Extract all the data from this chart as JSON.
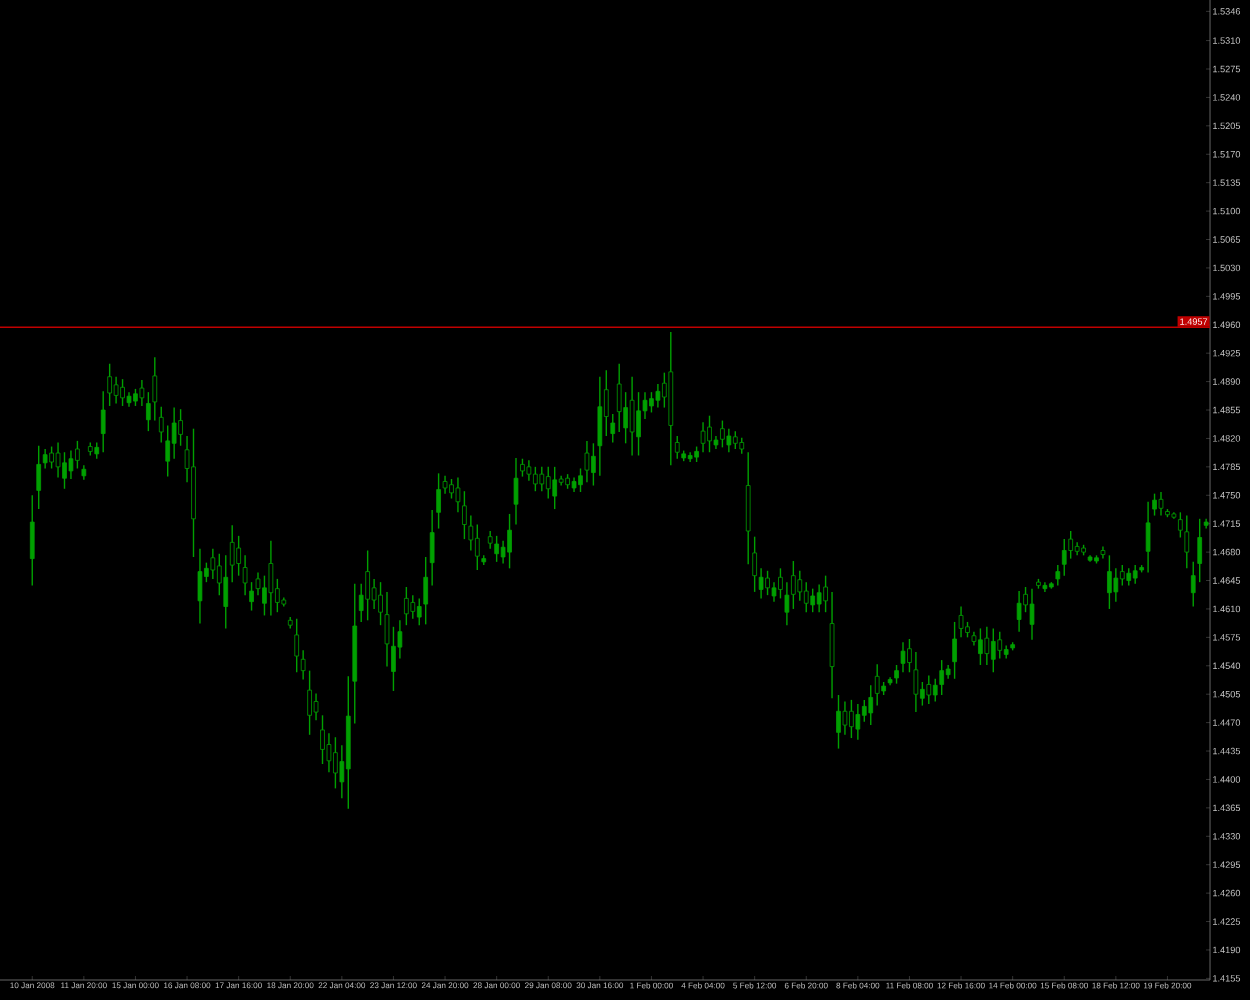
{
  "chart_data": {
    "type": "candlestick",
    "categories": [
      "10 Jan 2008",
      null,
      null,
      null,
      null,
      null,
      null,
      null,
      "11 Jan 20:00",
      null,
      null,
      null,
      null,
      null,
      null,
      null,
      "15 Jan 00:00",
      null,
      null,
      null,
      null,
      null,
      null,
      null,
      "16 Jan 08:00",
      null,
      null,
      null,
      null,
      null,
      null,
      null,
      "17 Jan 16:00",
      null,
      null,
      null,
      null,
      null,
      null,
      null,
      "18 Jan 20:00",
      null,
      null,
      null,
      null,
      null,
      null,
      null,
      "22 Jan 04:00",
      null,
      null,
      null,
      null,
      null,
      null,
      null,
      "23 Jan 12:00",
      null,
      null,
      null,
      null,
      null,
      null,
      null,
      "24 Jan 20:00",
      null,
      null,
      null,
      null,
      null,
      null,
      null,
      "28 Jan 00:00",
      null,
      null,
      null,
      null,
      null,
      null,
      null,
      "29 Jan 08:00",
      null,
      null,
      null,
      null,
      null,
      null,
      null,
      "30 Jan 16:00",
      null,
      null,
      null,
      null,
      null,
      null,
      null,
      "1 Feb 00:00",
      null,
      null,
      null,
      null,
      null,
      null,
      null,
      "4 Feb 04:00",
      null,
      null,
      null,
      null,
      null,
      null,
      null,
      "5 Feb 12:00",
      null,
      null,
      null,
      null,
      null,
      null,
      null,
      "6 Feb 20:00",
      null,
      null,
      null,
      null,
      null,
      null,
      null,
      "8 Feb 04:00",
      null,
      null,
      null,
      null,
      null,
      null,
      null,
      "11 Feb 08:00",
      null,
      null,
      null,
      null,
      null,
      null,
      null,
      "12 Feb 16:00",
      null,
      null,
      null,
      null,
      null,
      null,
      null,
      "14 Feb 00:00",
      null,
      null,
      null,
      null,
      null,
      null,
      null,
      "15 Feb 08:00",
      null,
      null,
      null,
      null,
      null,
      null,
      null,
      "18 Feb 12:00",
      null,
      null,
      null,
      null,
      null,
      null,
      null,
      "19 Feb 20:00",
      null,
      null,
      null,
      null,
      null,
      null
    ],
    "ohlc": [
      [
        1.4672,
        1.475,
        1.4639,
        1.4717
      ],
      [
        1.4756,
        1.4811,
        1.4733,
        1.4788
      ],
      [
        1.479,
        1.4807,
        1.4783,
        1.48
      ],
      [
        1.4802,
        1.481,
        1.4783,
        1.4791
      ],
      [
        1.4802,
        1.4815,
        1.4772,
        1.4785
      ],
      [
        1.4771,
        1.4803,
        1.4758,
        1.479
      ],
      [
        1.478,
        1.4805,
        1.477,
        1.4795
      ],
      [
        1.4807,
        1.4817,
        1.4783,
        1.4793
      ],
      [
        1.4774,
        1.4787,
        1.4769,
        1.4782
      ],
      [
        1.481,
        1.4815,
        1.4799,
        1.4804
      ],
      [
        1.4801,
        1.4815,
        1.4795,
        1.4809
      ],
      [
        1.4826,
        1.4878,
        1.4803,
        1.4855
      ],
      [
        1.4896,
        1.4912,
        1.486,
        1.4876
      ],
      [
        1.4886,
        1.4896,
        1.4863,
        1.4873
      ],
      [
        1.4883,
        1.4893,
        1.486,
        1.487
      ],
      [
        1.4864,
        1.4877,
        1.4859,
        1.4872
      ],
      [
        1.4866,
        1.4881,
        1.486,
        1.4875
      ],
      [
        1.4882,
        1.4892,
        1.486,
        1.487
      ],
      [
        1.4843,
        1.4877,
        1.4829,
        1.4863
      ],
      [
        1.4897,
        1.492,
        1.4842,
        1.4865
      ],
      [
        1.4846,
        1.4859,
        1.4815,
        1.4828
      ],
      [
        1.4792,
        1.4836,
        1.4773,
        1.4817
      ],
      [
        1.4814,
        1.4858,
        1.4795,
        1.4839
      ],
      [
        1.4842,
        1.4856,
        1.4811,
        1.4825
      ],
      [
        1.4806,
        1.4823,
        1.4766,
        1.4783
      ],
      [
        1.4785,
        1.4832,
        1.4674,
        1.4721
      ],
      [
        1.462,
        1.4684,
        1.4592,
        1.4656
      ],
      [
        1.465,
        1.4667,
        1.4643,
        1.466
      ],
      [
        1.4673,
        1.4684,
        1.4647,
        1.4658
      ],
      [
        1.4663,
        1.4678,
        1.4627,
        1.4642
      ],
      [
        1.4613,
        1.4676,
        1.4586,
        1.4649
      ],
      [
        1.4692,
        1.4713,
        1.4643,
        1.4664
      ],
      [
        1.4685,
        1.47,
        1.4651,
        1.4666
      ],
      [
        1.4661,
        1.4676,
        1.4627,
        1.4642
      ],
      [
        1.4619,
        1.4643,
        1.4608,
        1.4632
      ],
      [
        1.4647,
        1.4655,
        1.4627,
        1.4635
      ],
      [
        1.4617,
        1.4651,
        1.4602,
        1.4636
      ],
      [
        1.4666,
        1.4694,
        1.4602,
        1.463
      ],
      [
        1.4635,
        1.4647,
        1.4606,
        1.4618
      ],
      [
        1.4621,
        1.4624,
        1.4613,
        1.4616
      ],
      [
        1.4596,
        1.46,
        1.4586,
        1.459
      ],
      [
        1.4578,
        1.4598,
        1.4532,
        1.4552
      ],
      [
        1.4548,
        1.4559,
        1.4523,
        1.4534
      ],
      [
        1.451,
        1.4534,
        1.4455,
        1.4479
      ],
      [
        1.4496,
        1.4506,
        1.4473,
        1.4483
      ],
      [
        1.4461,
        1.4479,
        1.4419,
        1.4437
      ],
      [
        1.4443,
        1.4457,
        1.4409,
        1.4423
      ],
      [
        1.4433,
        1.4452,
        1.4389,
        1.4408
      ],
      [
        1.4397,
        1.4442,
        1.4377,
        1.4422
      ],
      [
        1.4413,
        1.4527,
        1.4364,
        1.4478
      ],
      [
        1.4521,
        1.4641,
        1.4469,
        1.4589
      ],
      [
        1.4608,
        1.4641,
        1.4594,
        1.4627
      ],
      [
        1.4656,
        1.4682,
        1.4596,
        1.4622
      ],
      [
        1.4636,
        1.4647,
        1.461,
        1.4621
      ],
      [
        1.4627,
        1.4643,
        1.459,
        1.4606
      ],
      [
        1.4603,
        1.4631,
        1.4539,
        1.4567
      ],
      [
        1.4533,
        1.4588,
        1.4509,
        1.4564
      ],
      [
        1.4563,
        1.4596,
        1.4549,
        1.4582
      ],
      [
        1.4623,
        1.4637,
        1.459,
        1.4604
      ],
      [
        1.4618,
        1.4627,
        1.4598,
        1.4607
      ],
      [
        1.46,
        1.4623,
        1.459,
        1.4613
      ],
      [
        1.4616,
        1.4674,
        1.4591,
        1.4649
      ],
      [
        1.4667,
        1.4732,
        1.4639,
        1.4704
      ],
      [
        1.4729,
        1.4777,
        1.4709,
        1.4757
      ],
      [
        1.4767,
        1.4774,
        1.4752,
        1.4759
      ],
      [
        1.4763,
        1.477,
        1.4746,
        1.4753
      ],
      [
        1.4759,
        1.4772,
        1.4729,
        1.4742
      ],
      [
        1.4737,
        1.4755,
        1.4696,
        1.4714
      ],
      [
        1.4712,
        1.4725,
        1.4682,
        1.4695
      ],
      [
        1.4697,
        1.4714,
        1.4658,
        1.4675
      ],
      [
        1.4668,
        1.4676,
        1.4664,
        1.4672
      ],
      [
        1.4699,
        1.4706,
        1.4684,
        1.4691
      ],
      [
        1.4678,
        1.47,
        1.4668,
        1.469
      ],
      [
        1.4674,
        1.4694,
        1.4666,
        1.4686
      ],
      [
        1.468,
        1.4727,
        1.466,
        1.4707
      ],
      [
        1.4739,
        1.4796,
        1.4714,
        1.4771
      ],
      [
        1.4788,
        1.4795,
        1.4773,
        1.478
      ],
      [
        1.4785,
        1.4793,
        1.4768,
        1.4776
      ],
      [
        1.4776,
        1.4785,
        1.4755,
        1.4764
      ],
      [
        1.4776,
        1.4785,
        1.4755,
        1.4764
      ],
      [
        1.4773,
        1.4785,
        1.4746,
        1.4758
      ],
      [
        1.4749,
        1.4785,
        1.4733,
        1.4769
      ],
      [
        1.477,
        1.4774,
        1.4762,
        1.4766
      ],
      [
        1.4771,
        1.4776,
        1.4758,
        1.4763
      ],
      [
        1.4759,
        1.4772,
        1.4754,
        1.4767
      ],
      [
        1.4763,
        1.4783,
        1.4754,
        1.4774
      ],
      [
        1.4802,
        1.4817,
        1.4766,
        1.4781
      ],
      [
        1.4778,
        1.4814,
        1.4762,
        1.4798
      ],
      [
        1.4811,
        1.4896,
        1.4774,
        1.4859
      ],
      [
        1.488,
        1.4904,
        1.4823,
        1.4847
      ],
      [
        1.4826,
        1.485,
        1.4815,
        1.4839
      ],
      [
        1.4887,
        1.4912,
        1.4828,
        1.4853
      ],
      [
        1.4833,
        1.4877,
        1.4814,
        1.4858
      ],
      [
        1.4867,
        1.4896,
        1.4799,
        1.4828
      ],
      [
        1.4822,
        1.4877,
        1.4799,
        1.4854
      ],
      [
        1.4854,
        1.4877,
        1.4844,
        1.4867
      ],
      [
        1.486,
        1.4877,
        1.4852,
        1.4869
      ],
      [
        1.4867,
        1.4887,
        1.4858,
        1.4878
      ],
      [
        1.4888,
        1.4901,
        1.4858,
        1.4871
      ],
      [
        1.4902,
        1.4951,
        1.4787,
        1.4836
      ],
      [
        1.4815,
        1.4823,
        1.4795,
        1.4803
      ],
      [
        1.4796,
        1.4805,
        1.4792,
        1.4801
      ],
      [
        1.4795,
        1.4803,
        1.4791,
        1.4799
      ],
      [
        1.4797,
        1.481,
        1.4791,
        1.4804
      ],
      [
        1.4829,
        1.484,
        1.4803,
        1.4814
      ],
      [
        1.4834,
        1.4848,
        1.4803,
        1.4817
      ],
      [
        1.4812,
        1.4823,
        1.4807,
        1.4818
      ],
      [
        1.4832,
        1.4842,
        1.4809,
        1.4819
      ],
      [
        1.4812,
        1.4832,
        1.4803,
        1.4823
      ],
      [
        1.4822,
        1.4829,
        1.4807,
        1.4814
      ],
      [
        1.4815,
        1.4821,
        1.4801,
        1.4807
      ],
      [
        1.4762,
        1.4803,
        1.4665,
        1.4706
      ],
      [
        1.4679,
        1.4699,
        1.4631,
        1.4651
      ],
      [
        1.4634,
        1.466,
        1.4623,
        1.4649
      ],
      [
        1.4648,
        1.4657,
        1.4627,
        1.4636
      ],
      [
        1.4626,
        1.4643,
        1.4619,
        1.4636
      ],
      [
        1.4649,
        1.466,
        1.4623,
        1.4634
      ],
      [
        1.4606,
        1.4643,
        1.459,
        1.4627
      ],
      [
        1.4651,
        1.4669,
        1.461,
        1.4628
      ],
      [
        1.4646,
        1.4657,
        1.462,
        1.4631
      ],
      [
        1.4632,
        1.4643,
        1.4606,
        1.4617
      ],
      [
        1.4615,
        1.4635,
        1.4606,
        1.4626
      ],
      [
        1.4616,
        1.464,
        1.4606,
        1.463
      ],
      [
        1.4637,
        1.4651,
        1.4606,
        1.462
      ],
      [
        1.4592,
        1.4631,
        1.45,
        1.4539
      ],
      [
        1.4458,
        1.4504,
        1.4438,
        1.4484
      ],
      [
        1.4484,
        1.4496,
        1.4455,
        1.4467
      ],
      [
        1.4484,
        1.4498,
        1.4451,
        1.4465
      ],
      [
        1.4462,
        1.4493,
        1.4449,
        1.448
      ],
      [
        1.4479,
        1.4498,
        1.4471,
        1.449
      ],
      [
        1.4482,
        1.4516,
        1.4467,
        1.4501
      ],
      [
        1.4527,
        1.4542,
        1.4491,
        1.4506
      ],
      [
        1.4509,
        1.452,
        1.4504,
        1.4515
      ],
      [
        1.4519,
        1.4526,
        1.4516,
        1.4523
      ],
      [
        1.4525,
        1.4541,
        1.4518,
        1.4534
      ],
      [
        1.4543,
        1.4569,
        1.4532,
        1.4558
      ],
      [
        1.4561,
        1.4573,
        1.4532,
        1.4544
      ],
      [
        1.4535,
        1.4557,
        1.4483,
        1.4505
      ],
      [
        1.45,
        1.452,
        1.4491,
        1.4511
      ],
      [
        1.4517,
        1.4528,
        1.4493,
        1.4504
      ],
      [
        1.4504,
        1.4524,
        1.4496,
        1.4516
      ],
      [
        1.4517,
        1.4547,
        1.4504,
        1.4534
      ],
      [
        1.4529,
        1.4541,
        1.4524,
        1.4536
      ],
      [
        1.4545,
        1.4594,
        1.4524,
        1.4573
      ],
      [
        1.4602,
        1.4613,
        1.4575,
        1.4586
      ],
      [
        1.4588,
        1.4594,
        1.4575,
        1.4581
      ],
      [
        1.4577,
        1.4582,
        1.4565,
        1.457
      ],
      [
        1.4555,
        1.4586,
        1.4541,
        1.4572
      ],
      [
        1.4574,
        1.4588,
        1.4541,
        1.4555
      ],
      [
        1.4548,
        1.4586,
        1.4532,
        1.457
      ],
      [
        1.4572,
        1.4582,
        1.4549,
        1.4559
      ],
      [
        1.4554,
        1.4565,
        1.4549,
        1.456
      ],
      [
        1.4562,
        1.4569,
        1.4559,
        1.4566
      ],
      [
        1.4597,
        1.4632,
        1.4582,
        1.4617
      ],
      [
        1.4628,
        1.4637,
        1.4606,
        1.4615
      ],
      [
        1.4591,
        1.4635,
        1.4572,
        1.4616
      ],
      [
        1.4643,
        1.4647,
        1.4635,
        1.4639
      ],
      [
        1.4635,
        1.4643,
        1.4631,
        1.4639
      ],
      [
        1.4637,
        1.4643,
        1.4635,
        1.4641
      ],
      [
        1.4647,
        1.4664,
        1.4639,
        1.4656
      ],
      [
        1.4665,
        1.4696,
        1.4651,
        1.4682
      ],
      [
        1.4696,
        1.4706,
        1.4672,
        1.4682
      ],
      [
        1.4687,
        1.4692,
        1.4676,
        1.4681
      ],
      [
        1.4685,
        1.4689,
        1.4676,
        1.468
      ],
      [
        1.467,
        1.4676,
        1.4668,
        1.4674
      ],
      [
        1.4669,
        1.4676,
        1.4666,
        1.4673
      ],
      [
        1.4682,
        1.4687,
        1.4672,
        1.4677
      ],
      [
        1.463,
        1.4676,
        1.461,
        1.4656
      ],
      [
        1.4631,
        1.466,
        1.4619,
        1.4648
      ],
      [
        1.4656,
        1.4664,
        1.4639,
        1.4647
      ],
      [
        1.4645,
        1.466,
        1.4639,
        1.4654
      ],
      [
        1.4648,
        1.4664,
        1.4641,
        1.4657
      ],
      [
        1.4658,
        1.4664,
        1.4655,
        1.4661
      ],
      [
        1.4681,
        1.4742,
        1.4655,
        1.4716
      ],
      [
        1.4733,
        1.4752,
        1.4725,
        1.4744
      ],
      [
        1.4745,
        1.4754,
        1.4725,
        1.4734
      ],
      [
        1.473,
        1.4733,
        1.4723,
        1.4726
      ],
      [
        1.4727,
        1.4729,
        1.4721,
        1.4723
      ],
      [
        1.472,
        1.4729,
        1.4698,
        1.4707
      ],
      [
        1.4705,
        1.4725,
        1.466,
        1.468
      ],
      [
        1.463,
        1.4668,
        1.4613,
        1.4651
      ],
      [
        1.4666,
        1.4721,
        1.4643,
        1.4698
      ],
      [
        1.4713,
        1.4721,
        1.4709,
        1.4717
      ]
    ],
    "color": "#00a000",
    "ylim": [
      1.4153,
      1.536
    ],
    "yticks": [
      1.4155,
      {
        "value": 1.419,
        "label": "1.4190"
      },
      1.4225,
      {
        "value": 1.426,
        "label": "1.4260"
      },
      1.4295,
      {
        "value": 1.433,
        "label": "1.4330"
      },
      1.4365,
      {
        "value": 1.44,
        "label": "1.4400"
      },
      1.4435,
      {
        "value": 1.447,
        "label": "1.4470"
      },
      1.4505,
      {
        "value": 1.454,
        "label": "1.4540"
      },
      1.4575,
      {
        "value": 1.461,
        "label": "1.4610"
      },
      1.4645,
      {
        "value": 1.468,
        "label": "1.4680"
      },
      1.4715,
      {
        "value": 1.475,
        "label": "1.4750"
      },
      1.4785,
      {
        "value": 1.482,
        "label": "1.4820"
      },
      1.4855,
      {
        "value": 1.489,
        "label": "1.4890"
      },
      1.4925,
      {
        "value": 1.496,
        "label": "1.4960"
      },
      1.4995,
      {
        "value": 1.503,
        "label": "1.5030"
      },
      1.5065,
      {
        "value": 1.51,
        "label": "1.5100"
      },
      1.5135,
      {
        "value": 1.517,
        "label": "1.5170"
      },
      1.5205,
      {
        "value": 1.524,
        "label": "1.5240"
      },
      1.5275,
      {
        "value": 1.531,
        "label": "1.5310"
      },
      1.5346
    ],
    "ref_lines": [
      {
        "axis": "y",
        "value": 1.4957,
        "label": "1.4957",
        "color": "#c00000"
      }
    ]
  }
}
